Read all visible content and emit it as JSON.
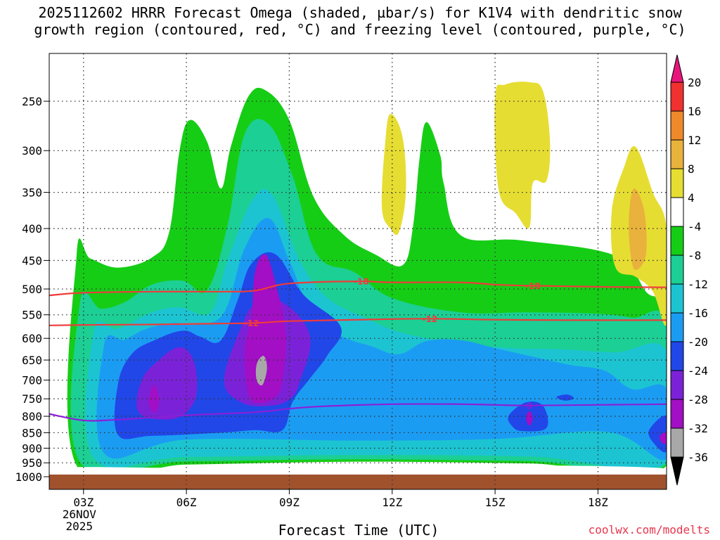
{
  "chart_data": {
    "type": "heatmap",
    "title_line1": "2025112602 HRRR Forecast Omega (shaded, µbar/s) for K1V4 with dendritic snow",
    "title_line2": "growth region (contoured, red, °C) and freezing level (contoured, purple, °C)",
    "xlabel": "Forecast Time (UTC)",
    "credit": "coolwx.com/modelts",
    "x_range_hours": [
      2.0,
      20.0
    ],
    "x_ticks": [
      {
        "hour": 3,
        "label": "03Z",
        "sub1": "26NOV",
        "sub2": "2025"
      },
      {
        "hour": 6,
        "label": "06Z"
      },
      {
        "hour": 9,
        "label": "09Z"
      },
      {
        "hour": 12,
        "label": "12Z"
      },
      {
        "hour": 15,
        "label": "15Z"
      },
      {
        "hour": 18,
        "label": "18Z"
      }
    ],
    "y_axis": "pressure_mb",
    "y_range_mb": [
      1000,
      200
    ],
    "y_ticks": [
      250,
      300,
      350,
      400,
      450,
      500,
      550,
      600,
      650,
      700,
      750,
      800,
      850,
      900,
      950,
      1000
    ],
    "colorbar": {
      "unit": "µbar/s",
      "levels": [
        20,
        16,
        12,
        8,
        4,
        -4,
        -8,
        -12,
        -16,
        -20,
        -24,
        -28,
        -32,
        -36
      ],
      "colors": {
        "gt20": "#e8157c",
        "b16_20": "#f0312f",
        "b12_16": "#ef8a2a",
        "b8_12": "#e8b23c",
        "b4_8": "#e6dd32",
        "bm4_4": "#ffffff",
        "bm8_m4": "#16cd16",
        "bm12_m8": "#1ccf94",
        "bm16_m12": "#1cc4d2",
        "bm20_m16": "#1b9cf3",
        "bm24_m20": "#2147e8",
        "bm28_m24": "#7b22d8",
        "bm32_m28": "#a20fc4",
        "bm36_m32": "#a8a8a8",
        "lt_m36": "#000000"
      }
    },
    "contours": [
      {
        "name": "dgz-minus18",
        "value": -18,
        "label": "-18",
        "color": "#ef3b3b",
        "points": [
          [
            2.0,
            512
          ],
          [
            3,
            507
          ],
          [
            5,
            505
          ],
          [
            7,
            505
          ],
          [
            8,
            503
          ],
          [
            9,
            490
          ],
          [
            11,
            486
          ],
          [
            12,
            488
          ],
          [
            14,
            488
          ],
          [
            15,
            492
          ],
          [
            16,
            494
          ],
          [
            18,
            496
          ],
          [
            20,
            497
          ]
        ]
      },
      {
        "name": "dgz-minus12",
        "value": -12,
        "label": "-12",
        "color": "#ef3b3b",
        "points": [
          [
            2.0,
            572
          ],
          [
            3,
            571
          ],
          [
            5,
            570
          ],
          [
            7,
            568
          ],
          [
            8,
            567
          ],
          [
            9,
            563
          ],
          [
            11,
            560
          ],
          [
            13,
            558
          ],
          [
            15,
            560
          ],
          [
            17,
            561
          ],
          [
            20,
            561
          ]
        ]
      },
      {
        "name": "freezing-level-0",
        "value": 0,
        "label": "0",
        "color": "#8b1fd8",
        "points": [
          [
            2.0,
            793
          ],
          [
            3,
            812
          ],
          [
            4,
            810
          ],
          [
            6,
            797
          ],
          [
            8,
            788
          ],
          [
            9,
            778
          ],
          [
            10,
            771
          ],
          [
            12,
            765
          ],
          [
            14,
            765
          ],
          [
            15,
            767
          ],
          [
            16,
            769
          ],
          [
            18,
            767
          ],
          [
            20,
            765
          ]
        ]
      }
    ],
    "contour_label_positions": [
      {
        "value": "-18",
        "hour": 11.1
      },
      {
        "value": "-18",
        "hour": 16.1
      },
      {
        "value": "-12",
        "hour": 7.9
      },
      {
        "value": "-12",
        "hour": 13.1
      },
      {
        "value": "0",
        "hour": 16.0
      }
    ],
    "shaded_regions": [
      {
        "band": "bm8_m4",
        "points": [
          [
            2.8,
            960
          ],
          [
            2.8,
            440
          ],
          [
            3.2,
            447
          ],
          [
            4,
            462
          ],
          [
            5,
            445
          ],
          [
            5.5,
            405
          ],
          [
            5.8,
            300
          ],
          [
            6.1,
            268
          ],
          [
            6.6,
            290
          ],
          [
            7,
            345
          ],
          [
            7.3,
            295
          ],
          [
            7.8,
            246
          ],
          [
            8.3,
            240
          ],
          [
            9,
            268
          ],
          [
            9.7,
            355
          ],
          [
            10.6,
            410
          ],
          [
            11.5,
            440
          ],
          [
            12.3,
            458
          ],
          [
            12.6,
            400
          ],
          [
            12.8,
            308
          ],
          [
            13,
            270
          ],
          [
            13.4,
            305
          ],
          [
            13.5,
            338
          ],
          [
            14,
            410
          ],
          [
            15.8,
            418
          ],
          [
            18.5,
            442
          ],
          [
            19.4,
            505
          ],
          [
            20,
            556
          ],
          [
            20,
            960
          ],
          [
            16,
            952
          ],
          [
            11,
            946
          ],
          [
            6,
            956
          ]
        ]
      },
      {
        "band": "bm12_m8",
        "points": [
          [
            2.9,
            948
          ],
          [
            2.9,
            525
          ],
          [
            3.5,
            538
          ],
          [
            4.2,
            525
          ],
          [
            5,
            492
          ],
          [
            5.9,
            485
          ],
          [
            6.6,
            502
          ],
          [
            7.2,
            395
          ],
          [
            7.7,
            282
          ],
          [
            8.4,
            272
          ],
          [
            9.1,
            330
          ],
          [
            9.8,
            440
          ],
          [
            10.9,
            470
          ],
          [
            12,
            517
          ],
          [
            14,
            545
          ],
          [
            16,
            545
          ],
          [
            18,
            548
          ],
          [
            19,
            556
          ],
          [
            20,
            568
          ],
          [
            20,
            953
          ],
          [
            16,
            944
          ],
          [
            11,
            938
          ],
          [
            6,
            945
          ]
        ]
      },
      {
        "band": "bm16_m12",
        "points": [
          [
            3.3,
            933
          ],
          [
            3.3,
            585
          ],
          [
            4,
            579
          ],
          [
            5,
            545
          ],
          [
            5.8,
            535
          ],
          [
            6.7,
            545
          ],
          [
            7.2,
            450
          ],
          [
            7.9,
            362
          ],
          [
            8.5,
            353
          ],
          [
            9.3,
            450
          ],
          [
            10.1,
            516
          ],
          [
            11.2,
            556
          ],
          [
            12.3,
            588
          ],
          [
            14,
            612
          ],
          [
            15.5,
            622
          ],
          [
            17,
            625
          ],
          [
            18.5,
            632
          ],
          [
            20,
            630
          ],
          [
            20,
            948
          ],
          [
            16,
            928
          ],
          [
            11,
            923
          ],
          [
            6,
            930
          ]
        ]
      },
      {
        "band": "bm20_m16",
        "points": [
          [
            3.6,
            917
          ],
          [
            3.6,
            615
          ],
          [
            4.2,
            603
          ],
          [
            4.8,
            580
          ],
          [
            5.6,
            567
          ],
          [
            6.3,
            570
          ],
          [
            7.1,
            545
          ],
          [
            7.7,
            430
          ],
          [
            8.4,
            385
          ],
          [
            9,
            450
          ],
          [
            9.6,
            535
          ],
          [
            10.4,
            590
          ],
          [
            11.4,
            618
          ],
          [
            12.2,
            636
          ],
          [
            13,
            606
          ],
          [
            14,
            604
          ],
          [
            15,
            622
          ],
          [
            16.1,
            642
          ],
          [
            17.2,
            662
          ],
          [
            18.2,
            676
          ],
          [
            19,
            724
          ],
          [
            20,
            724
          ],
          [
            20,
            936
          ],
          [
            18.3,
            848
          ],
          [
            15,
            870
          ],
          [
            11,
            875
          ],
          [
            6,
            872
          ]
        ]
      },
      {
        "band": "bm24_m20",
        "points": [
          [
            4,
            856
          ],
          [
            4,
            712
          ],
          [
            4.4,
            636
          ],
          [
            5.1,
            603
          ],
          [
            5.9,
            583
          ],
          [
            6.4,
            596
          ],
          [
            7,
            605
          ],
          [
            7.5,
            520
          ],
          [
            7.9,
            455
          ],
          [
            8.6,
            440
          ],
          [
            9.4,
            510
          ],
          [
            10.5,
            575
          ],
          [
            10.1,
            640
          ],
          [
            9.6,
            696
          ],
          [
            9.1,
            758
          ],
          [
            8.8,
            842
          ],
          [
            8,
            842
          ],
          [
            7,
            850
          ],
          [
            5,
            860
          ]
        ]
      },
      {
        "band": "bm24_m20",
        "points": [
          [
            15.4,
            798
          ],
          [
            15.9,
            760
          ],
          [
            16.4,
            770
          ],
          [
            16.5,
            835
          ],
          [
            15.8,
            845
          ],
          [
            15.5,
            830
          ]
        ]
      },
      {
        "band": "bm24_m20",
        "points": [
          [
            16.8,
            744
          ],
          [
            17.1,
            738
          ],
          [
            17.3,
            748
          ],
          [
            17.1,
            755
          ],
          [
            16.9,
            752
          ]
        ]
      },
      {
        "band": "bm24_m20",
        "points": [
          [
            19.5,
            840
          ],
          [
            20,
            800
          ],
          [
            20,
            910
          ],
          [
            19.6,
            880
          ]
        ]
      },
      {
        "band": "bm28_m24",
        "points": [
          [
            4.6,
            787
          ],
          [
            4.7,
            700
          ],
          [
            5.2,
            650
          ],
          [
            5.8,
            620
          ],
          [
            6.2,
            650
          ],
          [
            6.3,
            732
          ],
          [
            6,
            788
          ],
          [
            5.4,
            810
          ]
        ]
      },
      {
        "band": "bm28_m24",
        "points": [
          [
            7.1,
            700
          ],
          [
            7.6,
            575
          ],
          [
            8,
            530
          ],
          [
            8.8,
            525
          ],
          [
            9.6,
            595
          ],
          [
            9.3,
            705
          ],
          [
            9,
            752
          ],
          [
            8.4,
            770
          ],
          [
            7.6,
            760
          ]
        ]
      },
      {
        "band": "bm32_m28",
        "points": [
          [
            7.7,
            630
          ],
          [
            7.9,
            550
          ],
          [
            8,
            470
          ],
          [
            8.3,
            440
          ],
          [
            8.6,
            490
          ],
          [
            8.9,
            590
          ],
          [
            8.8,
            700
          ],
          [
            8.6,
            745
          ],
          [
            8.1,
            762
          ],
          [
            7.8,
            735
          ]
        ]
      },
      {
        "band": "bm32_m28",
        "points": [
          [
            4.9,
            760
          ],
          [
            5.05,
            712
          ],
          [
            5.2,
            752
          ],
          [
            5.08,
            790
          ]
        ]
      },
      {
        "band": "bm32_m28",
        "points": [
          [
            15.9,
            805
          ],
          [
            16.0,
            785
          ],
          [
            16.1,
            805
          ],
          [
            16,
            828
          ]
        ]
      },
      {
        "band": "bm32_m28",
        "points": [
          [
            19.8,
            860
          ],
          [
            20,
            850
          ],
          [
            20,
            885
          ],
          [
            19.85,
            880
          ]
        ]
      },
      {
        "band": "bm36_m32",
        "points": [
          [
            8.05,
            660
          ],
          [
            8.25,
            640
          ],
          [
            8.35,
            670
          ],
          [
            8.22,
            712
          ],
          [
            8.05,
            700
          ]
        ]
      },
      {
        "band": "b4_8",
        "points": [
          [
            11.7,
            370
          ],
          [
            11.8,
            290
          ],
          [
            11.95,
            262
          ],
          [
            12.3,
            285
          ],
          [
            12.4,
            348
          ],
          [
            12.2,
            405
          ],
          [
            11.95,
            400
          ]
        ]
      },
      {
        "band": "b4_8",
        "points": [
          [
            15.1,
            346
          ],
          [
            15.0,
            246
          ],
          [
            15.3,
            235
          ],
          [
            16,
            233
          ],
          [
            16.4,
            241
          ],
          [
            16.6,
            290
          ],
          [
            16.5,
            335
          ],
          [
            16.1,
            338
          ],
          [
            16.0,
            398
          ],
          [
            15.6,
            378
          ]
        ]
      },
      {
        "band": "b4_8",
        "points": [
          [
            18.5,
            460
          ],
          [
            18.4,
            375
          ],
          [
            18.75,
            320
          ],
          [
            19.1,
            296
          ],
          [
            19.6,
            350
          ],
          [
            20,
            400
          ],
          [
            20,
            568
          ],
          [
            19.6,
            505
          ],
          [
            19.1,
            478
          ]
        ]
      },
      {
        "band": "b8_12",
        "points": [
          [
            18.95,
            440
          ],
          [
            18.9,
            385
          ],
          [
            19.05,
            345
          ],
          [
            19.35,
            375
          ],
          [
            19.4,
            440
          ],
          [
            19.1,
            466
          ]
        ]
      },
      {
        "band": "bm4_4",
        "points": [
          [
            2,
            1000
          ],
          [
            2,
            972
          ],
          [
            3,
            965
          ],
          [
            6,
            968
          ],
          [
            11,
            966
          ],
          [
            16,
            959
          ],
          [
            20,
            970
          ],
          [
            20,
            1000
          ]
        ]
      }
    ],
    "surface_band": {
      "name": "ground",
      "color": "#a0522d",
      "top_mb": 992
    }
  }
}
